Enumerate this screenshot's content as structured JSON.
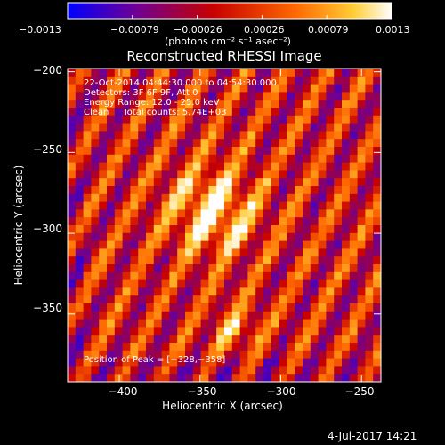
{
  "chart_data": {
    "type": "heatmap",
    "title": "Reconstructed RHESSI Image",
    "xlabel": "Heliocentric X (arcsec)",
    "ylabel": "Heliocentric Y (arcsec)",
    "xlim": [
      -432,
      -238
    ],
    "ylim": [
      -392,
      -198
    ],
    "xticks": [
      -400,
      -350,
      -300,
      -250
    ],
    "xtick_labels": [
      "−400",
      "−350",
      "−300",
      "−250"
    ],
    "yticks": [
      -200,
      -250,
      -300,
      -350
    ],
    "ytick_labels": [
      "−200",
      "−250",
      "−300",
      "−350"
    ],
    "colorbar": {
      "range": [
        -0.0013,
        0.0013
      ],
      "tick_labels": [
        "−0.0013",
        "−0.00079",
        "−0.00026",
        "0.00026",
        "0.00079",
        "0.0013"
      ],
      "units_label": "(photons cm⁻² s⁻¹ asec⁻²)",
      "colors": [
        "#0000ff",
        "#6a0099",
        "#c80000",
        "#ff6600",
        "#ffcc33",
        "#ffffff"
      ]
    },
    "annotations": [
      "22-Oct-2014 04:44:30.000 to 04:54:30.000",
      "Detectors: 3F 6F 9F, Att 0",
      "Energy Range: 12.0 - 25.0 keV",
      "Clean     Total counts: 5.74E+03"
    ],
    "peak_label": "Position of Peak = [−328,−358]",
    "peak": [
      -328,
      -358
    ],
    "grid": false
  },
  "footer": {
    "timestamp": "4-Jul-2017 14:21"
  }
}
